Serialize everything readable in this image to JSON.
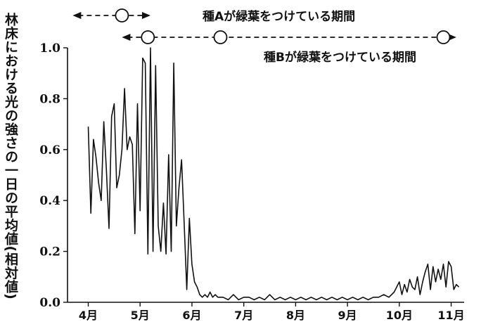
{
  "chart_data": {
    "type": "line",
    "ylabel": "林床における光の強さの一日の平均値(相対値)",
    "xlabel": "",
    "ylim": [
      0,
      1.0
    ],
    "yticks": [
      "0.0",
      "0.2",
      "0.4",
      "0.6",
      "0.8",
      "1.0"
    ],
    "month_labels": [
      "4月",
      "5月",
      "6月",
      "7月",
      "8月",
      "9月",
      "10月",
      "11月"
    ],
    "periods": [
      {
        "label": "種Aが緑葉をつけている期間",
        "range": [
          3.7,
          5.2
        ],
        "circles": [
          4.65
        ]
      },
      {
        "label": "種Bが緑葉をつけている期間",
        "range": [
          4.65,
          11.1
        ],
        "circles": [
          5.15,
          6.55,
          10.85
        ]
      }
    ],
    "series": [
      {
        "x": [
          4.0,
          4.05,
          4.1,
          4.15,
          4.2,
          4.25,
          4.3,
          4.35,
          4.4,
          4.45,
          4.5,
          4.55,
          4.6,
          4.65,
          4.7,
          4.75,
          4.8,
          4.85,
          4.9,
          4.95,
          5.0,
          5.05,
          5.1,
          5.15,
          5.2,
          5.25,
          5.3,
          5.35,
          5.4,
          5.45,
          5.5,
          5.55,
          5.6,
          5.65,
          5.7,
          5.75,
          5.8,
          5.85,
          5.9,
          5.95,
          6.0,
          6.05,
          6.1,
          6.15,
          6.2,
          6.25,
          6.3,
          6.35,
          6.4,
          6.45,
          6.5,
          6.6,
          6.7,
          6.8,
          6.9,
          7.0,
          7.1,
          7.2,
          7.3,
          7.4,
          7.5,
          7.6,
          7.7,
          7.8,
          7.9,
          8.0,
          8.1,
          8.2,
          8.3,
          8.4,
          8.5,
          8.6,
          8.7,
          8.8,
          8.9,
          9.0,
          9.1,
          9.2,
          9.3,
          9.4,
          9.5,
          9.6,
          9.7,
          9.8,
          9.9,
          10.0,
          10.05,
          10.1,
          10.15,
          10.2,
          10.25,
          10.3,
          10.35,
          10.4,
          10.45,
          10.5,
          10.55,
          10.6,
          10.65,
          10.7,
          10.75,
          10.8,
          10.85,
          10.9,
          10.95,
          11.0,
          11.05,
          11.1,
          11.15
        ],
        "y": [
          0.69,
          0.35,
          0.64,
          0.57,
          0.47,
          0.4,
          0.71,
          0.52,
          0.29,
          0.73,
          0.78,
          0.45,
          0.5,
          0.6,
          0.84,
          0.6,
          0.65,
          0.62,
          0.27,
          0.78,
          0.36,
          0.96,
          0.94,
          0.19,
          1.0,
          0.2,
          0.93,
          0.3,
          0.2,
          0.39,
          0.19,
          0.58,
          0.2,
          0.94,
          0.3,
          0.45,
          0.56,
          0.31,
          0.05,
          0.33,
          0.15,
          0.08,
          0.06,
          0.03,
          0.02,
          0.03,
          0.02,
          0.04,
          0.02,
          0.03,
          0.02,
          0.02,
          0.01,
          0.03,
          0.01,
          0.02,
          0.02,
          0.01,
          0.02,
          0.01,
          0.03,
          0.01,
          0.02,
          0.01,
          0.02,
          0.01,
          0.02,
          0.01,
          0.02,
          0.01,
          0.02,
          0.01,
          0.02,
          0.01,
          0.02,
          0.01,
          0.02,
          0.01,
          0.02,
          0.01,
          0.02,
          0.02,
          0.03,
          0.02,
          0.04,
          0.08,
          0.03,
          0.07,
          0.04,
          0.09,
          0.06,
          0.05,
          0.1,
          0.03,
          0.08,
          0.12,
          0.15,
          0.05,
          0.14,
          0.08,
          0.13,
          0.09,
          0.15,
          0.06,
          0.16,
          0.14,
          0.05,
          0.07,
          0.06
        ]
      }
    ],
    "grid": false
  }
}
